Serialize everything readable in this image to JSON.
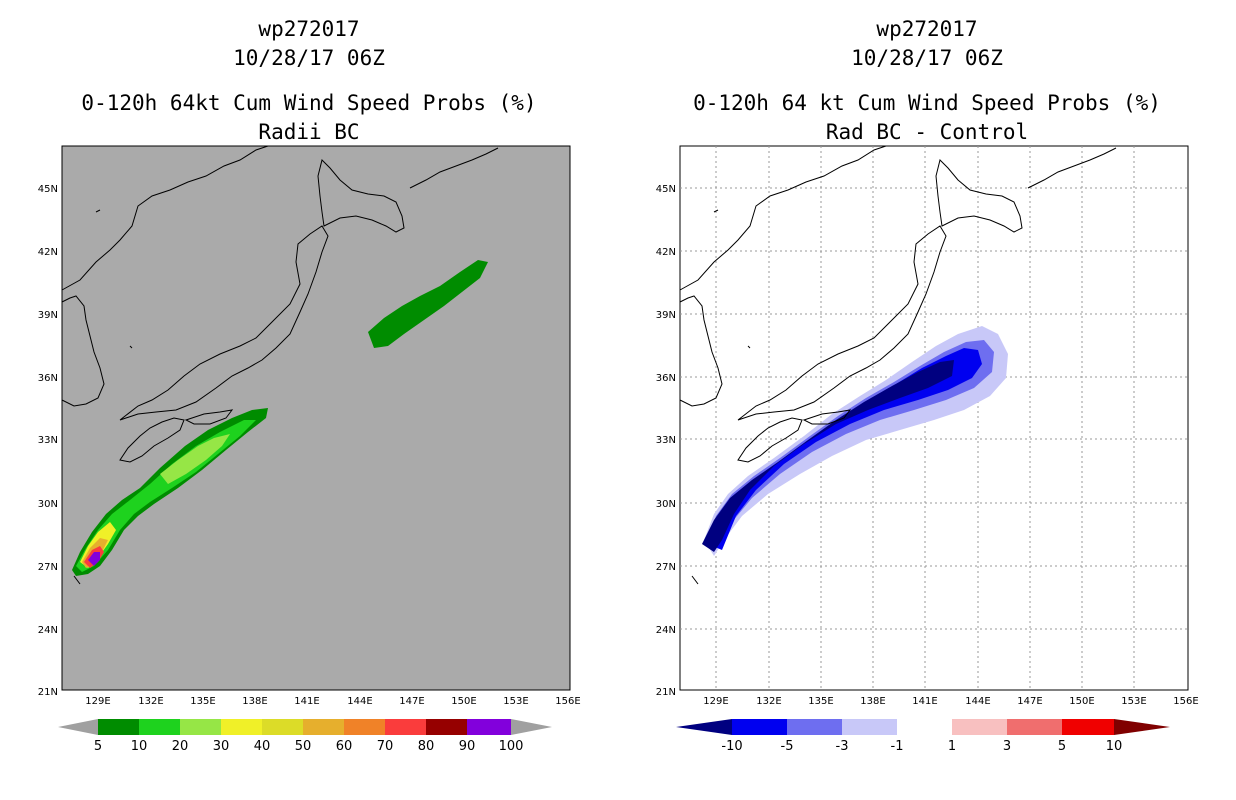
{
  "left": {
    "title_line1": "wp272017",
    "title_line2": "10/28/17 06Z",
    "title_line3": "0-120h 64kt Cum Wind Speed Probs (%)",
    "title_line4": "Radii BC",
    "lat_labels": [
      "45N",
      "42N",
      "39N",
      "36N",
      "33N",
      "30N",
      "27N",
      "24N",
      "21N"
    ],
    "lon_labels": [
      "129E",
      "132E",
      "135E",
      "138E",
      "141E",
      "144E",
      "147E",
      "150E",
      "153E",
      "156E"
    ],
    "colorbar": {
      "labels": [
        "5",
        "10",
        "20",
        "30",
        "40",
        "50",
        "60",
        "70",
        "80",
        "90",
        "100"
      ],
      "colors": [
        "#008c00",
        "#1ed21e",
        "#96e646",
        "#f0f028",
        "#dcdc28",
        "#e6af2d",
        "#f08228",
        "#fa3c3c",
        "#960000",
        "#8200dc"
      ],
      "end_color": "#a0a0a0"
    },
    "background_color": "#aaaaaa"
  },
  "right": {
    "title_line1": "wp272017",
    "title_line2": "10/28/17 06Z",
    "title_line3": "0-120h 64 kt Cum Wind Speed Probs (%)",
    "title_line4": "Rad BC - Control",
    "lat_labels": [
      "45N",
      "42N",
      "39N",
      "36N",
      "33N",
      "30N",
      "27N",
      "24N",
      "21N"
    ],
    "lon_labels": [
      "129E",
      "132E",
      "135E",
      "138E",
      "141E",
      "144E",
      "147E",
      "150E",
      "153E",
      "156E"
    ],
    "colorbar": {
      "labels": [
        "-10",
        "-5",
        "-3",
        "-1",
        "1",
        "3",
        "5",
        "10"
      ],
      "colors": [
        "#000080",
        "#0000f0",
        "#6e6ef0",
        "#c8c8f8",
        "#ffffff",
        "#f8c0c0",
        "#f06e6e",
        "#f00000",
        "#800000"
      ]
    },
    "background_color": "#ffffff"
  }
}
